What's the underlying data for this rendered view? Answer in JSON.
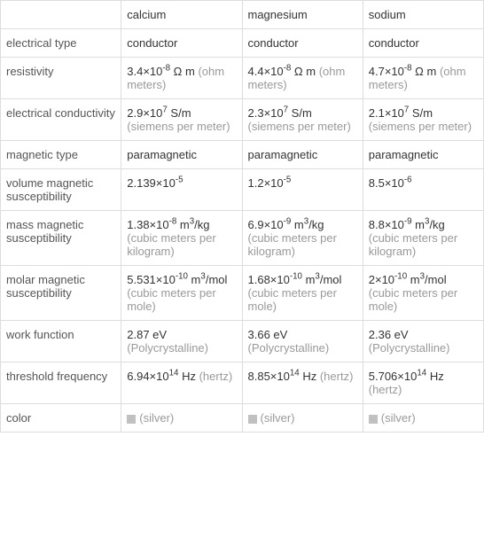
{
  "table": {
    "type": "table",
    "columns": [
      "calcium",
      "magnesium",
      "sodium"
    ],
    "rows": [
      {
        "label": "electrical type",
        "cells": [
          {
            "value": "conductor",
            "unit": ""
          },
          {
            "value": "conductor",
            "unit": ""
          },
          {
            "value": "conductor",
            "unit": ""
          }
        ]
      },
      {
        "label": "resistivity",
        "cells": [
          {
            "value_html": "3.4×10<sup>-8</sup> Ω m",
            "unit": "(ohm meters)"
          },
          {
            "value_html": "4.4×10<sup>-8</sup> Ω m",
            "unit": "(ohm meters)"
          },
          {
            "value_html": "4.7×10<sup>-8</sup> Ω m",
            "unit": "(ohm meters)"
          }
        ]
      },
      {
        "label": "electrical conductivity",
        "cells": [
          {
            "value_html": "2.9×10<sup>7</sup> S/m",
            "unit": "(siemens per meter)"
          },
          {
            "value_html": "2.3×10<sup>7</sup> S/m",
            "unit": "(siemens per meter)"
          },
          {
            "value_html": "2.1×10<sup>7</sup> S/m",
            "unit": "(siemens per meter)"
          }
        ]
      },
      {
        "label": "magnetic type",
        "cells": [
          {
            "value": "paramagnetic",
            "unit": ""
          },
          {
            "value": "paramagnetic",
            "unit": ""
          },
          {
            "value": "paramagnetic",
            "unit": ""
          }
        ]
      },
      {
        "label": "volume magnetic susceptibility",
        "cells": [
          {
            "value_html": "2.139×10<sup>-5</sup>",
            "unit": ""
          },
          {
            "value_html": "1.2×10<sup>-5</sup>",
            "unit": ""
          },
          {
            "value_html": "8.5×10<sup>-6</sup>",
            "unit": ""
          }
        ]
      },
      {
        "label": "mass magnetic susceptibility",
        "cells": [
          {
            "value_html": "1.38×10<sup>-8</sup> m<sup>3</sup>/kg",
            "unit": "(cubic meters per kilogram)"
          },
          {
            "value_html": "6.9×10<sup>-9</sup> m<sup>3</sup>/kg",
            "unit": "(cubic meters per kilogram)"
          },
          {
            "value_html": "8.8×10<sup>-9</sup> m<sup>3</sup>/kg",
            "unit": "(cubic meters per kilogram)"
          }
        ]
      },
      {
        "label": "molar magnetic susceptibility",
        "cells": [
          {
            "value_html": "5.531×10<sup>-10</sup> m<sup>3</sup>/mol",
            "unit": "(cubic meters per mole)"
          },
          {
            "value_html": "1.68×10<sup>-10</sup> m<sup>3</sup>/mol",
            "unit": "(cubic meters per mole)"
          },
          {
            "value_html": "2×10<sup>-10</sup> m<sup>3</sup>/mol",
            "unit": "(cubic meters per mole)"
          }
        ]
      },
      {
        "label": "work function",
        "cells": [
          {
            "value": "2.87 eV",
            "unit": "(Polycrystalline)"
          },
          {
            "value": "3.66 eV",
            "unit": "(Polycrystalline)"
          },
          {
            "value": "2.36 eV",
            "unit": "(Polycrystalline)"
          }
        ]
      },
      {
        "label": "threshold frequency",
        "cells": [
          {
            "value_html": "6.94×10<sup>14</sup> Hz",
            "unit": "(hertz)"
          },
          {
            "value_html": "8.85×10<sup>14</sup> Hz",
            "unit": "(hertz)"
          },
          {
            "value_html": "5.706×10<sup>14</sup> Hz",
            "unit": "(hertz)"
          }
        ]
      },
      {
        "label": "color",
        "cells": [
          {
            "color": "#c0c0c0",
            "color_label": "(silver)"
          },
          {
            "color": "#c0c0c0",
            "color_label": "(silver)"
          },
          {
            "color": "#c0c0c0",
            "color_label": "(silver)"
          }
        ]
      }
    ],
    "border_color": "#dddddd",
    "label_text_color": "#555555",
    "value_text_color": "#333333",
    "unit_text_color": "#999999",
    "background_color": "#ffffff",
    "font_size": 13
  }
}
